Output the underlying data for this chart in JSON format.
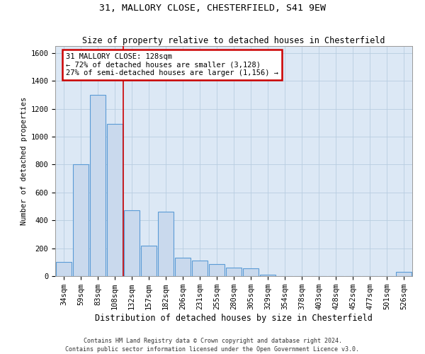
{
  "title1": "31, MALLORY CLOSE, CHESTERFIELD, S41 9EW",
  "title2": "Size of property relative to detached houses in Chesterfield",
  "xlabel": "Distribution of detached houses by size in Chesterfield",
  "ylabel": "Number of detached properties",
  "categories": [
    "34sqm",
    "59sqm",
    "83sqm",
    "108sqm",
    "132sqm",
    "157sqm",
    "182sqm",
    "206sqm",
    "231sqm",
    "255sqm",
    "280sqm",
    "305sqm",
    "329sqm",
    "354sqm",
    "378sqm",
    "403sqm",
    "428sqm",
    "452sqm",
    "477sqm",
    "501sqm",
    "526sqm"
  ],
  "bar_values": [
    100,
    800,
    1300,
    1090,
    470,
    220,
    460,
    130,
    110,
    85,
    60,
    55,
    10,
    0,
    0,
    0,
    0,
    0,
    0,
    0,
    30
  ],
  "bar_color": "#c9d9ed",
  "bar_edge_color": "#5b9bd5",
  "vline_x_index": 3.5,
  "annotation_lines": [
    "31 MALLORY CLOSE: 128sqm",
    "← 72% of detached houses are smaller (3,128)",
    "27% of semi-detached houses are larger (1,156) →"
  ],
  "vline_color": "#cc0000",
  "ylim": [
    0,
    1650
  ],
  "yticks": [
    0,
    200,
    400,
    600,
    800,
    1000,
    1200,
    1400,
    1600
  ],
  "footer1": "Contains HM Land Registry data © Crown copyright and database right 2024.",
  "footer2": "Contains public sector information licensed under the Open Government Licence v3.0.",
  "bg_color": "#ffffff",
  "plot_bg_color": "#dce8f5",
  "grid_color": "#b8cde0",
  "fig_width": 6.0,
  "fig_height": 5.0,
  "title1_fontsize": 9.5,
  "title2_fontsize": 8.5,
  "xlabel_fontsize": 8.5,
  "ylabel_fontsize": 7.5,
  "tick_fontsize": 7.5,
  "footer_fontsize": 6.0,
  "ann_fontsize": 7.5
}
